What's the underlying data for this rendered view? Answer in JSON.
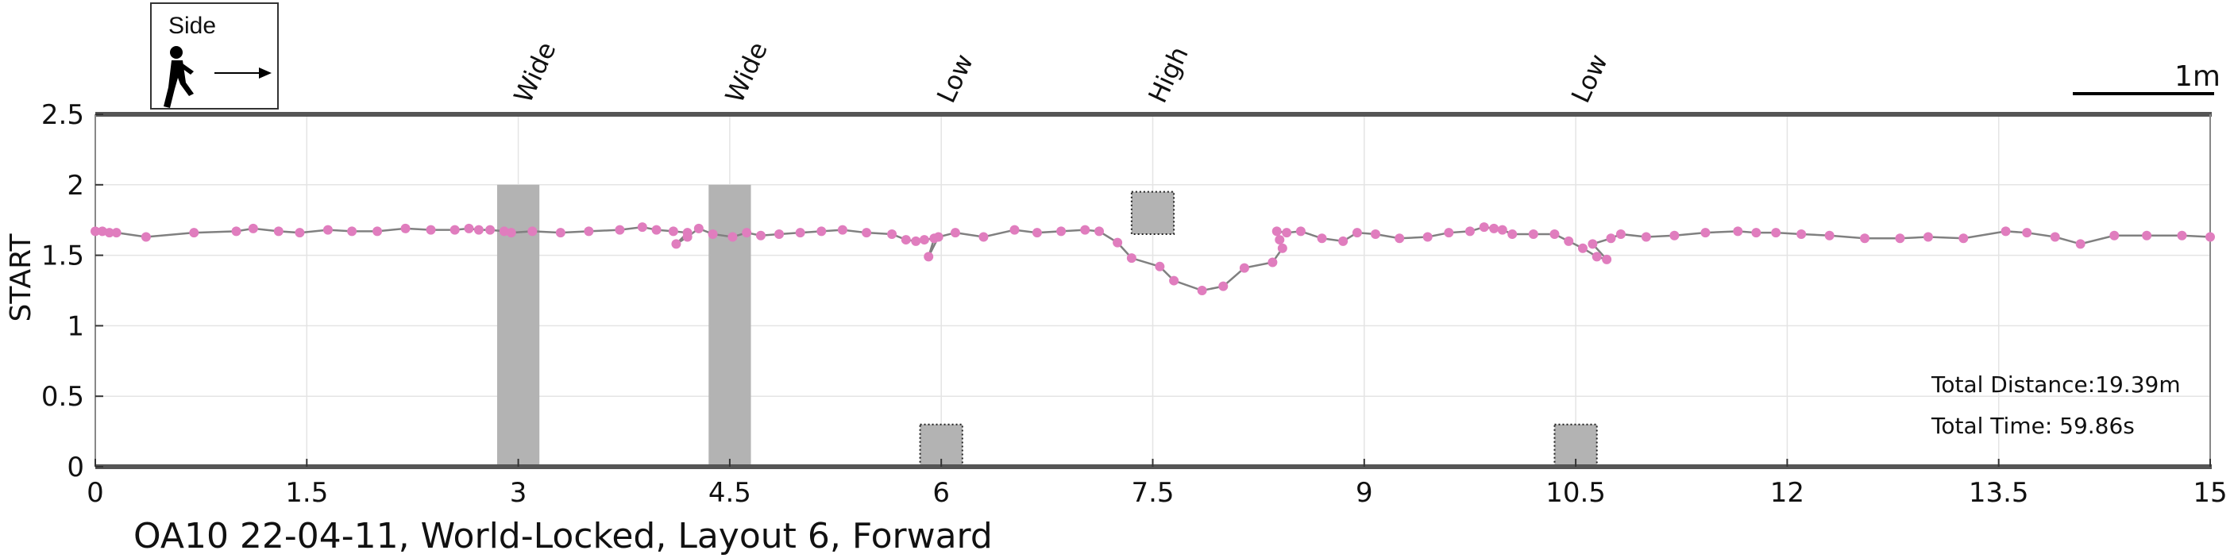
{
  "chart_data": {
    "type": "line",
    "title": "",
    "xlabel": "",
    "ylabel": "START",
    "xlim": [
      0,
      15
    ],
    "ylim": [
      0,
      2.5
    ],
    "grid": true,
    "x_ticks": [
      "0",
      "1.5",
      "3",
      "4.5",
      "6",
      "7.5",
      "9",
      "10.5",
      "12",
      "13.5",
      "15"
    ],
    "x_tick_values": [
      0,
      1.5,
      3,
      4.5,
      6,
      7.5,
      9,
      10.5,
      12,
      13.5,
      15
    ],
    "y_ticks": [
      "0",
      "0.5",
      "1",
      "1.5",
      "2",
      "2.5"
    ],
    "y_tick_values": [
      0,
      0.5,
      1,
      1.5,
      2,
      2.5
    ],
    "series": [
      {
        "name": "",
        "color": "#E07DBE",
        "line_color": "#808080",
        "points": [
          [
            0.0,
            1.67
          ],
          [
            0.05,
            1.67
          ],
          [
            0.1,
            1.66
          ],
          [
            0.15,
            1.66
          ],
          [
            0.36,
            1.63
          ],
          [
            0.7,
            1.66
          ],
          [
            1.0,
            1.67
          ],
          [
            1.12,
            1.69
          ],
          [
            1.3,
            1.67
          ],
          [
            1.45,
            1.66
          ],
          [
            1.65,
            1.68
          ],
          [
            1.82,
            1.67
          ],
          [
            2.0,
            1.67
          ],
          [
            2.2,
            1.69
          ],
          [
            2.38,
            1.68
          ],
          [
            2.55,
            1.68
          ],
          [
            2.65,
            1.69
          ],
          [
            2.72,
            1.68
          ],
          [
            2.8,
            1.68
          ],
          [
            2.9,
            1.67
          ],
          [
            2.95,
            1.66
          ],
          [
            3.1,
            1.67
          ],
          [
            3.3,
            1.66
          ],
          [
            3.5,
            1.67
          ],
          [
            3.72,
            1.68
          ],
          [
            3.88,
            1.7
          ],
          [
            3.98,
            1.68
          ],
          [
            4.1,
            1.67
          ],
          [
            4.2,
            1.66
          ],
          [
            4.12,
            1.58
          ],
          [
            4.2,
            1.63
          ],
          [
            4.28,
            1.69
          ],
          [
            4.38,
            1.65
          ],
          [
            4.52,
            1.63
          ],
          [
            4.62,
            1.66
          ],
          [
            4.72,
            1.64
          ],
          [
            4.85,
            1.65
          ],
          [
            5.0,
            1.66
          ],
          [
            5.15,
            1.67
          ],
          [
            5.3,
            1.68
          ],
          [
            5.47,
            1.66
          ],
          [
            5.65,
            1.65
          ],
          [
            5.75,
            1.61
          ],
          [
            5.82,
            1.6
          ],
          [
            5.88,
            1.61
          ],
          [
            5.95,
            1.62
          ],
          [
            5.91,
            1.49
          ],
          [
            5.98,
            1.63
          ],
          [
            6.1,
            1.66
          ],
          [
            6.3,
            1.63
          ],
          [
            6.52,
            1.68
          ],
          [
            6.68,
            1.66
          ],
          [
            6.85,
            1.67
          ],
          [
            7.02,
            1.68
          ],
          [
            7.12,
            1.67
          ],
          [
            7.25,
            1.59
          ],
          [
            7.35,
            1.48
          ],
          [
            7.55,
            1.42
          ],
          [
            7.65,
            1.32
          ],
          [
            7.85,
            1.25
          ],
          [
            8.0,
            1.28
          ],
          [
            8.15,
            1.41
          ],
          [
            8.35,
            1.45
          ],
          [
            8.42,
            1.55
          ],
          [
            8.4,
            1.61
          ],
          [
            8.38,
            1.67
          ],
          [
            8.45,
            1.66
          ],
          [
            8.55,
            1.67
          ],
          [
            8.7,
            1.62
          ],
          [
            8.85,
            1.6
          ],
          [
            8.95,
            1.66
          ],
          [
            9.08,
            1.65
          ],
          [
            9.25,
            1.62
          ],
          [
            9.45,
            1.63
          ],
          [
            9.6,
            1.66
          ],
          [
            9.75,
            1.67
          ],
          [
            9.85,
            1.7
          ],
          [
            9.92,
            1.69
          ],
          [
            9.98,
            1.68
          ],
          [
            10.05,
            1.65
          ],
          [
            10.2,
            1.65
          ],
          [
            10.35,
            1.65
          ],
          [
            10.45,
            1.6
          ],
          [
            10.55,
            1.55
          ],
          [
            10.65,
            1.49
          ],
          [
            10.72,
            1.47
          ],
          [
            10.62,
            1.58
          ],
          [
            10.75,
            1.62
          ],
          [
            10.82,
            1.65
          ],
          [
            11.0,
            1.63
          ],
          [
            11.2,
            1.64
          ],
          [
            11.42,
            1.66
          ],
          [
            11.65,
            1.67
          ],
          [
            11.78,
            1.66
          ],
          [
            11.92,
            1.66
          ],
          [
            12.1,
            1.65
          ],
          [
            12.3,
            1.64
          ],
          [
            12.55,
            1.62
          ],
          [
            12.8,
            1.62
          ],
          [
            13.0,
            1.63
          ],
          [
            13.25,
            1.62
          ],
          [
            13.55,
            1.67
          ],
          [
            13.7,
            1.66
          ],
          [
            13.9,
            1.63
          ],
          [
            14.08,
            1.58
          ],
          [
            14.32,
            1.64
          ],
          [
            14.55,
            1.64
          ],
          [
            14.8,
            1.64
          ],
          [
            15.0,
            1.63
          ]
        ]
      }
    ],
    "obstacles": [
      {
        "label": "Wide",
        "x": [
          2.85,
          3.15
        ],
        "y": [
          0,
          2.0
        ],
        "style": "solid"
      },
      {
        "label": "Wide",
        "x": [
          4.35,
          4.65
        ],
        "y": [
          0,
          2.0
        ],
        "style": "solid"
      },
      {
        "label": "Low",
        "x": [
          5.85,
          6.15
        ],
        "y": [
          0,
          0.3
        ],
        "style": "dotted"
      },
      {
        "label": "High",
        "x": [
          7.35,
          7.65
        ],
        "y": [
          1.65,
          1.95
        ],
        "style": "dotted"
      },
      {
        "label": "Low",
        "x": [
          10.35,
          10.65
        ],
        "y": [
          0,
          0.3
        ],
        "style": "dotted"
      }
    ],
    "obstacle_color": "#B3B3B3",
    "annotations": {
      "total_distance": "Total Distance:19.39m",
      "total_time": "Total Time: 59.86s",
      "scale_bar": "1m",
      "side_box": "Side"
    },
    "caption": "OA10 22-04-11, World-Locked, Layout 6, Forward"
  }
}
